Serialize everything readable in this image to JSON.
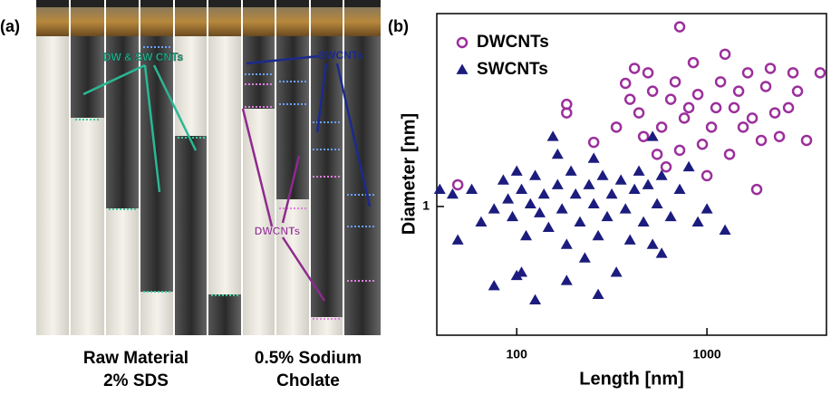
{
  "panel_a": {
    "label": "(a)",
    "arrow_label_top": "DW & SW CNTs",
    "arrow_label_sw": "SWCNTs",
    "arrow_label_dw": "DWCNTs",
    "caption_left": [
      "Raw Material",
      "2% SDS"
    ],
    "caption_right": [
      "0.5% Sodium",
      "Cholate"
    ]
  },
  "chart_data": {
    "type": "scatter",
    "panel_label": "(b)",
    "x_label": "Length [nm]",
    "y_label": "Diameter [nm]",
    "xlog": true,
    "ylog": true,
    "xlim": [
      38,
      4250
    ],
    "ylim": [
      0.6,
      2.15
    ],
    "xticks": [
      100,
      1000
    ],
    "yticks": [
      1
    ],
    "legend": "top-left",
    "series": [
      {
        "name": "DWCNTs",
        "color": "#9b2f9b",
        "marker": "circle-open",
        "x": [
          49,
          183,
          183,
          254,
          334,
          373,
          394,
          416,
          439,
          464,
          490,
          518,
          547,
          578,
          610,
          645,
          681,
          719,
          760,
          803,
          848,
          896,
          946,
          1000,
          1056,
          1116,
          1179,
          1245,
          1315,
          1389,
          1468,
          1550,
          1638,
          1730,
          1827,
          1930,
          2039,
          2154,
          2276,
          2404,
          2683,
          2834,
          2994,
          3340,
          3936,
          719
        ],
        "values": [
          1.09,
          1.5,
          1.45,
          1.29,
          1.37,
          1.63,
          1.53,
          1.73,
          1.45,
          1.32,
          1.7,
          1.58,
          1.23,
          1.37,
          1.17,
          1.53,
          1.64,
          1.25,
          1.42,
          1.48,
          1.77,
          1.56,
          1.28,
          1.13,
          1.37,
          1.48,
          1.64,
          1.83,
          1.23,
          1.48,
          1.58,
          1.37,
          1.7,
          1.42,
          1.07,
          1.3,
          1.61,
          1.73,
          1.45,
          1.32,
          1.48,
          1.7,
          1.58,
          1.3,
          1.7,
          2.04
        ]
      },
      {
        "name": "SWCNTs",
        "color": "#1c1c7e",
        "marker": "triangle",
        "x": [
          39.4,
          46,
          58,
          49,
          65,
          76,
          85,
          90,
          95,
          100,
          106,
          112,
          118,
          125,
          132,
          139,
          147,
          155,
          164,
          173,
          183,
          193,
          204,
          215,
          228,
          240,
          254,
          268,
          283,
          299,
          316,
          334,
          353,
          373,
          394,
          416,
          439,
          464,
          490,
          518,
          547,
          578,
          645,
          719,
          803,
          896,
          1000,
          1245,
          76,
          106,
          125,
          183,
          268,
          100,
          164,
          254,
          518,
          578
        ],
        "values": [
          1.07,
          1.05,
          1.07,
          0.875,
          0.94,
          0.99,
          1.11,
          1.03,
          0.96,
          1.15,
          1.07,
          0.89,
          1.01,
          1.13,
          0.975,
          1.05,
          0.92,
          1.32,
          1.09,
          0.99,
          0.86,
          1.15,
          1.05,
          0.94,
          0.815,
          1.09,
          1.01,
          0.89,
          1.13,
          0.96,
          1.05,
          0.77,
          1.11,
          0.99,
          0.875,
          1.07,
          1.15,
          0.94,
          1.09,
          0.86,
          1.01,
          0.83,
          0.96,
          1.07,
          1.17,
          0.94,
          0.99,
          0.91,
          0.73,
          0.77,
          0.69,
          0.745,
          0.705,
          0.76,
          1.23,
          1.21,
          1.32,
          1.13
        ]
      }
    ]
  }
}
